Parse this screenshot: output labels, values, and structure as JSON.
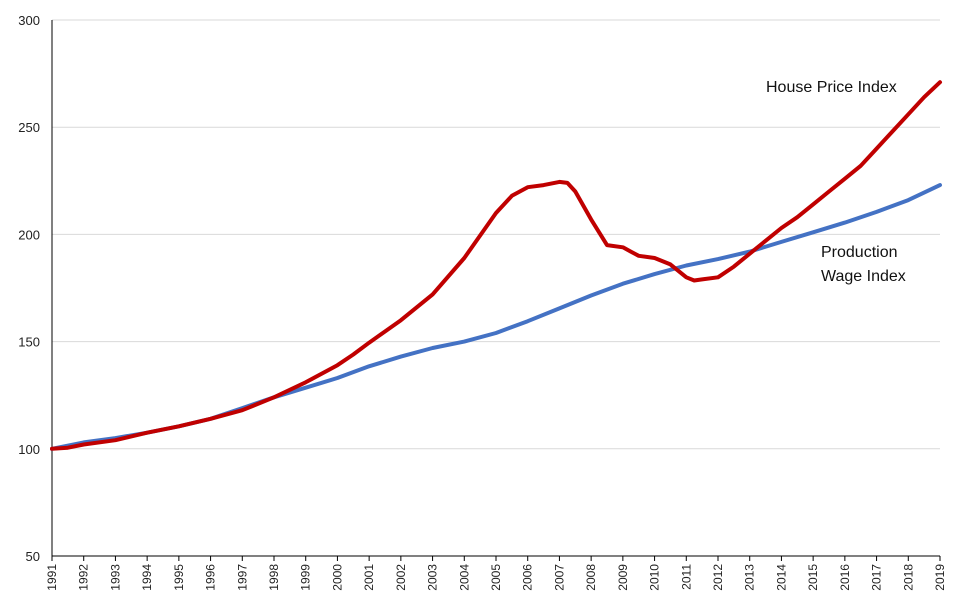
{
  "chart_data": {
    "type": "line",
    "title": "",
    "xlabel": "",
    "ylabel": "",
    "ylim": [
      50,
      300
    ],
    "y_ticks": [
      "50",
      "100",
      "150",
      "200",
      "250",
      "300"
    ],
    "xlim": [
      1991,
      2019
    ],
    "x_ticks": [
      "1991",
      "1992",
      "1993",
      "1994",
      "1995",
      "1996",
      "1997",
      "1998",
      "1999",
      "2000",
      "2001",
      "2002",
      "2003",
      "2004",
      "2005",
      "2006",
      "2007",
      "2008",
      "2009",
      "2010",
      "2011",
      "2012",
      "2013",
      "2014",
      "2015",
      "2016",
      "2017",
      "2018",
      "2019"
    ],
    "grid": "horizontal",
    "legend": "none",
    "series": [
      {
        "name": "House Price Index",
        "color": "#c00000",
        "label_lines": [
          "House Price Index"
        ],
        "x": [
          1991,
          1991.5,
          1992,
          1993,
          1994,
          1995,
          1996,
          1997,
          1998,
          1999,
          2000,
          2000.5,
          2001,
          2002,
          2003,
          2004,
          2005,
          2005.5,
          2006,
          2006.5,
          2007,
          2007.25,
          2007.5,
          2008,
          2008.5,
          2009,
          2009.25,
          2009.5,
          2010,
          2010.5,
          2011,
          2011.25,
          2011.5,
          2012,
          2012.5,
          2013,
          2013.5,
          2014,
          2014.5,
          2015,
          2015.5,
          2016,
          2016.5,
          2017,
          2017.5,
          2018,
          2018.5,
          2019
        ],
        "values": [
          100,
          100.5,
          102,
          104,
          107.5,
          110.5,
          114,
          118,
          124,
          131,
          139,
          144,
          149.5,
          160,
          172,
          189,
          210,
          218,
          222,
          223,
          224.5,
          224,
          220,
          207,
          195,
          194,
          192,
          190,
          189,
          186,
          180,
          178.5,
          179,
          180,
          185,
          191,
          197,
          203,
          208,
          214,
          220,
          226,
          232,
          240,
          248,
          256,
          264,
          271
        ]
      },
      {
        "name": "Production Wage Index",
        "color": "#4472c4",
        "label_lines": [
          "Production",
          "Wage Index"
        ],
        "x": [
          1991,
          1992,
          1993,
          1994,
          1995,
          1996,
          1997,
          1998,
          1999,
          2000,
          2001,
          2002,
          2003,
          2004,
          2005,
          2006,
          2007,
          2008,
          2009,
          2010,
          2011,
          2012,
          2013,
          2014,
          2015,
          2016,
          2017,
          2018,
          2019
        ],
        "values": [
          100,
          103,
          105,
          107.5,
          110.5,
          114,
          119,
          124,
          128.5,
          133,
          138.5,
          143,
          147,
          150,
          154,
          159.5,
          165.5,
          171.5,
          177,
          181.5,
          185.5,
          188.5,
          192,
          196.5,
          201,
          205.5,
          210.5,
          216,
          223
        ]
      }
    ]
  }
}
